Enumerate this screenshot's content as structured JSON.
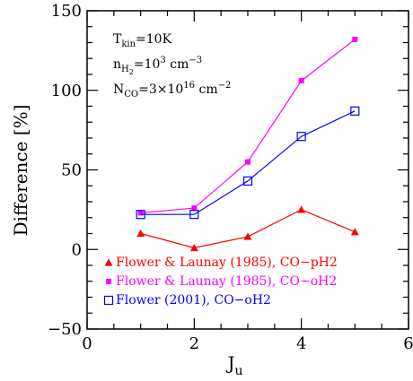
{
  "chart_data": {
    "type": "line",
    "xlabel": "J",
    "xlabel_sub": "u",
    "ylabel": "Difference [%]",
    "xlim": [
      0,
      6
    ],
    "ylim": [
      -50,
      150
    ],
    "xticks": [
      0,
      2,
      4,
      6
    ],
    "yticks": [
      -50,
      0,
      50,
      100,
      150
    ],
    "xtick_labels": [
      "0",
      "2",
      "4",
      "6"
    ],
    "ytick_labels": [
      "−50",
      "0",
      "50",
      "100",
      "150"
    ],
    "grid": false,
    "legend_position": "bottom-left",
    "annotations": [
      {
        "base": "T",
        "sub": "kin",
        "rest": "=10K"
      },
      {
        "base": "n",
        "sub": "H",
        "subsub": "2",
        "rest": "=10",
        "sup": "3",
        "tail": " cm",
        "tail_sup": "−3"
      },
      {
        "base": "N",
        "sub": "CO",
        "rest": "=3×10",
        "sup": "16",
        "tail": " cm",
        "tail_sup": "−2"
      }
    ],
    "series": [
      {
        "name": "Flower & Launay (1985), CO−pH2",
        "color": "#ff0000",
        "marker": "triangle-filled",
        "x": [
          1,
          2,
          3,
          4,
          5
        ],
        "y": [
          10,
          1,
          8,
          25,
          11
        ]
      },
      {
        "name": "Flower & Launay (1985), CO−oH2",
        "color": "#ff00ff",
        "marker": "square-filled",
        "x": [
          1,
          2,
          3,
          4,
          5
        ],
        "y": [
          23,
          26,
          55,
          106,
          132
        ]
      },
      {
        "name": "Flower (2001), CO−oH2",
        "color": "#0000ff",
        "marker": "square-open",
        "x": [
          1,
          2,
          3,
          4,
          5
        ],
        "y": [
          22,
          22,
          43,
          71,
          87
        ]
      }
    ]
  }
}
